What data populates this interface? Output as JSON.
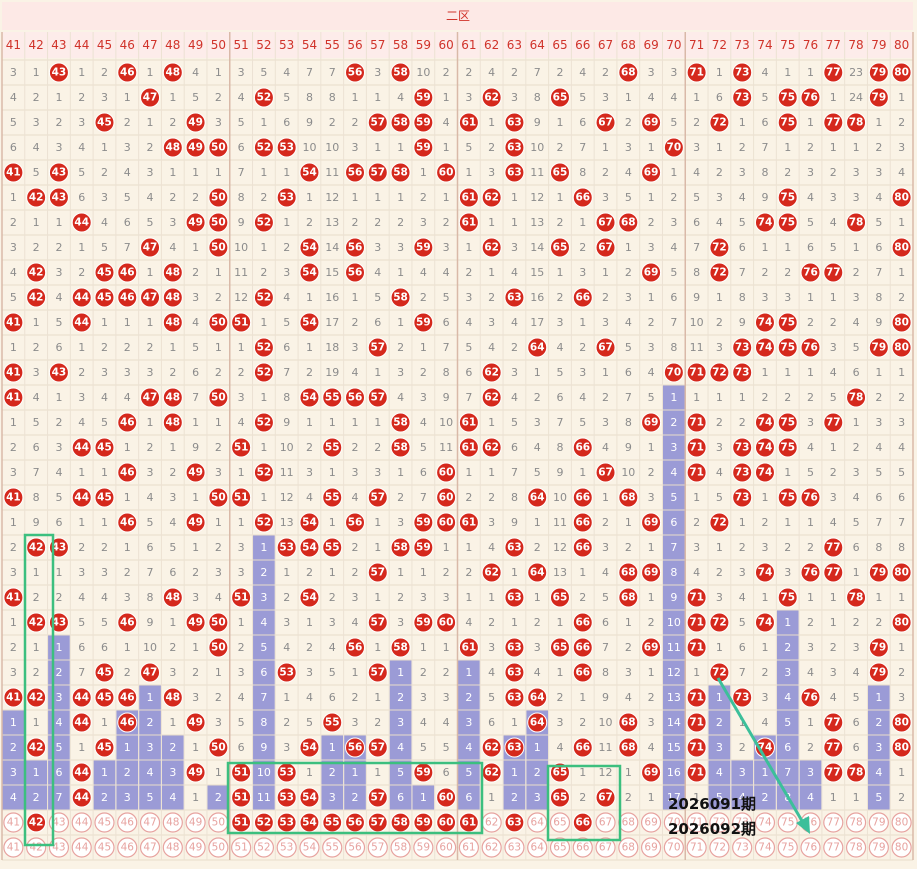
{
  "header": {
    "title": "二区"
  },
  "columns": [
    41,
    42,
    43,
    44,
    45,
    46,
    47,
    48,
    49,
    50,
    51,
    52,
    53,
    54,
    55,
    56,
    57,
    58,
    59,
    60,
    61,
    62,
    63,
    64,
    65,
    66,
    67,
    68,
    69,
    70,
    71,
    72,
    73,
    74,
    75,
    76,
    77,
    78,
    79,
    80
  ],
  "rows": [
    [
      3,
      1,
      43,
      1,
      2,
      46,
      1,
      48,
      4,
      1,
      3,
      5,
      4,
      7,
      7,
      56,
      3,
      58,
      10,
      2,
      2,
      4,
      2,
      7,
      2,
      4,
      2,
      68,
      3,
      3,
      71,
      1,
      73,
      4,
      1,
      1,
      77,
      23,
      79,
      80
    ],
    [
      4,
      2,
      1,
      2,
      3,
      1,
      47,
      1,
      5,
      2,
      4,
      52,
      5,
      8,
      8,
      1,
      1,
      4,
      59,
      1,
      3,
      62,
      3,
      8,
      65,
      5,
      3,
      1,
      4,
      4,
      1,
      6,
      73,
      5,
      75,
      76,
      1,
      24,
      79,
      1
    ],
    [
      5,
      3,
      2,
      3,
      45,
      2,
      1,
      2,
      49,
      3,
      5,
      1,
      6,
      9,
      2,
      2,
      57,
      58,
      59,
      4,
      61,
      1,
      63,
      9,
      1,
      6,
      67,
      2,
      69,
      5,
      2,
      72,
      1,
      6,
      75,
      1,
      77,
      78,
      1,
      2
    ],
    [
      6,
      4,
      3,
      4,
      1,
      3,
      2,
      48,
      49,
      50,
      6,
      52,
      53,
      10,
      10,
      3,
      1,
      1,
      59,
      1,
      5,
      2,
      63,
      10,
      2,
      7,
      1,
      3,
      1,
      70,
      3,
      1,
      2,
      7,
      1,
      2,
      1,
      1,
      2,
      3
    ],
    [
      41,
      5,
      43,
      5,
      2,
      4,
      3,
      1,
      1,
      1,
      7,
      1,
      1,
      54,
      11,
      56,
      57,
      58,
      1,
      60,
      1,
      3,
      63,
      11,
      65,
      8,
      2,
      4,
      69,
      1,
      4,
      2,
      3,
      8,
      2,
      3,
      2,
      3,
      3,
      4
    ],
    [
      1,
      42,
      43,
      6,
      3,
      5,
      4,
      2,
      2,
      50,
      8,
      2,
      53,
      1,
      12,
      1,
      1,
      1,
      2,
      1,
      61,
      62,
      1,
      12,
      1,
      66,
      3,
      5,
      1,
      2,
      5,
      3,
      4,
      9,
      75,
      4,
      3,
      3,
      4,
      80
    ],
    [
      2,
      1,
      1,
      44,
      4,
      6,
      5,
      3,
      49,
      50,
      9,
      52,
      1,
      2,
      13,
      2,
      2,
      2,
      3,
      2,
      61,
      1,
      1,
      13,
      2,
      1,
      67,
      68,
      2,
      3,
      6,
      4,
      5,
      74,
      75,
      5,
      4,
      78,
      5,
      1
    ],
    [
      3,
      2,
      2,
      1,
      5,
      7,
      47,
      4,
      1,
      50,
      10,
      1,
      2,
      54,
      14,
      56,
      3,
      3,
      59,
      3,
      1,
      62,
      3,
      14,
      65,
      2,
      67,
      1,
      3,
      4,
      7,
      72,
      6,
      1,
      1,
      6,
      5,
      1,
      6,
      80
    ],
    [
      4,
      42,
      3,
      2,
      45,
      46,
      1,
      48,
      2,
      1,
      11,
      2,
      3,
      54,
      15,
      56,
      4,
      1,
      4,
      4,
      2,
      1,
      4,
      15,
      1,
      3,
      1,
      2,
      69,
      5,
      8,
      72,
      7,
      2,
      2,
      76,
      77,
      2,
      7,
      1
    ],
    [
      5,
      42,
      4,
      44,
      45,
      46,
      47,
      48,
      3,
      2,
      12,
      52,
      4,
      1,
      16,
      1,
      5,
      58,
      2,
      5,
      3,
      2,
      63,
      16,
      2,
      66,
      2,
      3,
      1,
      6,
      9,
      1,
      8,
      3,
      3,
      1,
      1,
      3,
      8,
      2
    ],
    [
      41,
      1,
      5,
      44,
      1,
      1,
      1,
      48,
      4,
      50,
      51,
      1,
      5,
      54,
      17,
      2,
      6,
      1,
      59,
      6,
      4,
      3,
      4,
      17,
      3,
      1,
      3,
      4,
      2,
      7,
      10,
      2,
      9,
      74,
      75,
      2,
      2,
      4,
      9,
      80
    ],
    [
      1,
      2,
      6,
      1,
      2,
      2,
      2,
      1,
      5,
      1,
      1,
      52,
      6,
      1,
      18,
      3,
      57,
      2,
      1,
      7,
      5,
      4,
      2,
      64,
      4,
      2,
      67,
      5,
      3,
      8,
      11,
      3,
      73,
      74,
      75,
      76,
      3,
      5,
      79,
      80
    ],
    [
      41,
      3,
      43,
      2,
      3,
      3,
      3,
      2,
      6,
      2,
      2,
      52,
      7,
      2,
      19,
      4,
      1,
      3,
      2,
      8,
      6,
      62,
      3,
      1,
      5,
      3,
      1,
      6,
      4,
      70,
      71,
      72,
      73,
      1,
      1,
      1,
      4,
      6,
      1,
      1
    ],
    [
      41,
      4,
      1,
      3,
      4,
      4,
      47,
      48,
      7,
      50,
      3,
      1,
      8,
      54,
      55,
      56,
      57,
      4,
      3,
      9,
      7,
      62,
      4,
      2,
      6,
      4,
      2,
      7,
      5,
      1,
      1,
      1,
      1,
      2,
      2,
      2,
      5,
      78,
      2,
      2
    ],
    [
      1,
      5,
      2,
      4,
      5,
      46,
      1,
      48,
      1,
      1,
      4,
      52,
      9,
      1,
      1,
      1,
      1,
      58,
      4,
      10,
      61,
      1,
      5,
      3,
      7,
      5,
      3,
      8,
      69,
      2,
      71,
      2,
      2,
      74,
      75,
      3,
      77,
      1,
      3,
      3
    ],
    [
      2,
      6,
      3,
      44,
      45,
      1,
      2,
      1,
      9,
      2,
      51,
      1,
      10,
      2,
      55,
      2,
      2,
      58,
      5,
      11,
      61,
      62,
      6,
      4,
      8,
      66,
      4,
      9,
      1,
      3,
      71,
      3,
      73,
      74,
      75,
      4,
      1,
      2,
      4,
      4
    ],
    [
      3,
      7,
      4,
      1,
      1,
      46,
      3,
      2,
      49,
      3,
      1,
      52,
      11,
      3,
      1,
      3,
      3,
      1,
      6,
      60,
      1,
      1,
      7,
      5,
      9,
      1,
      67,
      10,
      2,
      4,
      71,
      4,
      73,
      74,
      1,
      5,
      2,
      3,
      5,
      5
    ],
    [
      41,
      8,
      5,
      44,
      45,
      1,
      4,
      3,
      1,
      50,
      51,
      1,
      12,
      4,
      55,
      4,
      57,
      2,
      7,
      60,
      2,
      2,
      8,
      64,
      10,
      66,
      1,
      68,
      3,
      5,
      1,
      5,
      73,
      1,
      75,
      76,
      3,
      4,
      6,
      6
    ],
    [
      1,
      9,
      6,
      1,
      1,
      46,
      5,
      4,
      49,
      1,
      1,
      52,
      13,
      54,
      1,
      56,
      1,
      3,
      59,
      60,
      61,
      3,
      9,
      1,
      11,
      66,
      2,
      1,
      69,
      6,
      2,
      72,
      1,
      2,
      1,
      1,
      4,
      5,
      7,
      7
    ],
    [
      2,
      42,
      43,
      2,
      2,
      1,
      6,
      5,
      1,
      2,
      3,
      1,
      53,
      54,
      55,
      2,
      1,
      58,
      59,
      1,
      1,
      4,
      63,
      2,
      12,
      66,
      3,
      2,
      1,
      7,
      3,
      1,
      2,
      3,
      2,
      2,
      77,
      6,
      8,
      8
    ],
    [
      3,
      1,
      1,
      3,
      3,
      2,
      7,
      6,
      2,
      3,
      3,
      2,
      1,
      2,
      1,
      2,
      57,
      1,
      1,
      2,
      2,
      62,
      1,
      64,
      13,
      1,
      4,
      68,
      69,
      8,
      4,
      2,
      3,
      74,
      3,
      76,
      77,
      1,
      79,
      80
    ],
    [
      41,
      2,
      2,
      4,
      4,
      3,
      8,
      48,
      3,
      4,
      51,
      3,
      2,
      54,
      2,
      3,
      1,
      2,
      3,
      3,
      1,
      1,
      63,
      1,
      65,
      2,
      5,
      68,
      1,
      9,
      71,
      3,
      4,
      1,
      75,
      1,
      1,
      78,
      1,
      1
    ],
    [
      1,
      42,
      43,
      5,
      5,
      46,
      9,
      1,
      49,
      50,
      1,
      4,
      3,
      1,
      3,
      4,
      57,
      3,
      59,
      60,
      4,
      2,
      1,
      2,
      1,
      66,
      6,
      1,
      2,
      10,
      71,
      72,
      5,
      74,
      1,
      2,
      1,
      2,
      2,
      80
    ],
    [
      2,
      1,
      1,
      6,
      6,
      1,
      10,
      2,
      1,
      50,
      2,
      5,
      4,
      2,
      4,
      56,
      1,
      58,
      1,
      1,
      61,
      3,
      63,
      3,
      65,
      66,
      7,
      2,
      69,
      11,
      71,
      1,
      6,
      1,
      2,
      3,
      2,
      3,
      79,
      1
    ],
    [
      3,
      2,
      2,
      7,
      45,
      2,
      47,
      3,
      2,
      1,
      3,
      6,
      53,
      3,
      5,
      1,
      57,
      1,
      2,
      2,
      1,
      4,
      63,
      4,
      1,
      66,
      8,
      3,
      1,
      12,
      1,
      72,
      7,
      2,
      3,
      4,
      3,
      4,
      79,
      2
    ],
    [
      41,
      42,
      3,
      44,
      45,
      46,
      1,
      48,
      3,
      2,
      4,
      7,
      1,
      4,
      6,
      2,
      1,
      2,
      3,
      3,
      2,
      5,
      63,
      64,
      2,
      1,
      9,
      4,
      2,
      13,
      71,
      1,
      73,
      3,
      4,
      76,
      4,
      5,
      1,
      3
    ],
    [
      1,
      1,
      4,
      44,
      1,
      46,
      2,
      1,
      49,
      3,
      5,
      8,
      2,
      5,
      55,
      3,
      2,
      3,
      4,
      4,
      3,
      6,
      1,
      64,
      3,
      2,
      10,
      68,
      3,
      14,
      71,
      2,
      1,
      4,
      5,
      1,
      77,
      6,
      2,
      80
    ],
    [
      2,
      42,
      5,
      1,
      45,
      1,
      3,
      2,
      1,
      50,
      6,
      9,
      3,
      54,
      1,
      56,
      57,
      4,
      5,
      5,
      4,
      62,
      63,
      1,
      4,
      66,
      11,
      68,
      4,
      15,
      71,
      3,
      2,
      74,
      6,
      2,
      77,
      6,
      3,
      80
    ],
    [
      3,
      1,
      6,
      44,
      1,
      2,
      4,
      3,
      49,
      1,
      51,
      10,
      53,
      1,
      2,
      1,
      1,
      5,
      59,
      6,
      5,
      62,
      1,
      2,
      65,
      1,
      12,
      1,
      69,
      16,
      71,
      4,
      3,
      1,
      7,
      3,
      77,
      78,
      4,
      1
    ],
    [
      4,
      2,
      7,
      44,
      2,
      3,
      5,
      4,
      1,
      2,
      51,
      11,
      53,
      54,
      3,
      2,
      57,
      6,
      1,
      60,
      6,
      1,
      2,
      3,
      65,
      2,
      67,
      2,
      1,
      17,
      1,
      5,
      4,
      2,
      8,
      4,
      1,
      1,
      5,
      2
    ]
  ],
  "bar_heights": [
    4,
    2,
    7,
    0,
    2,
    4,
    5,
    3,
    0,
    1,
    0,
    11,
    0,
    0,
    3,
    3,
    0,
    6,
    1,
    0,
    6,
    0,
    3,
    4,
    0,
    0,
    0,
    0,
    0,
    17,
    0,
    5,
    2,
    3,
    8,
    2,
    0,
    0,
    5,
    0
  ],
  "selected": [
    42,
    51,
    52,
    53,
    54,
    55,
    56,
    57,
    58,
    59,
    60,
    61,
    63,
    66
  ],
  "issue_labels": [
    "2026091期",
    "2026092期"
  ]
}
